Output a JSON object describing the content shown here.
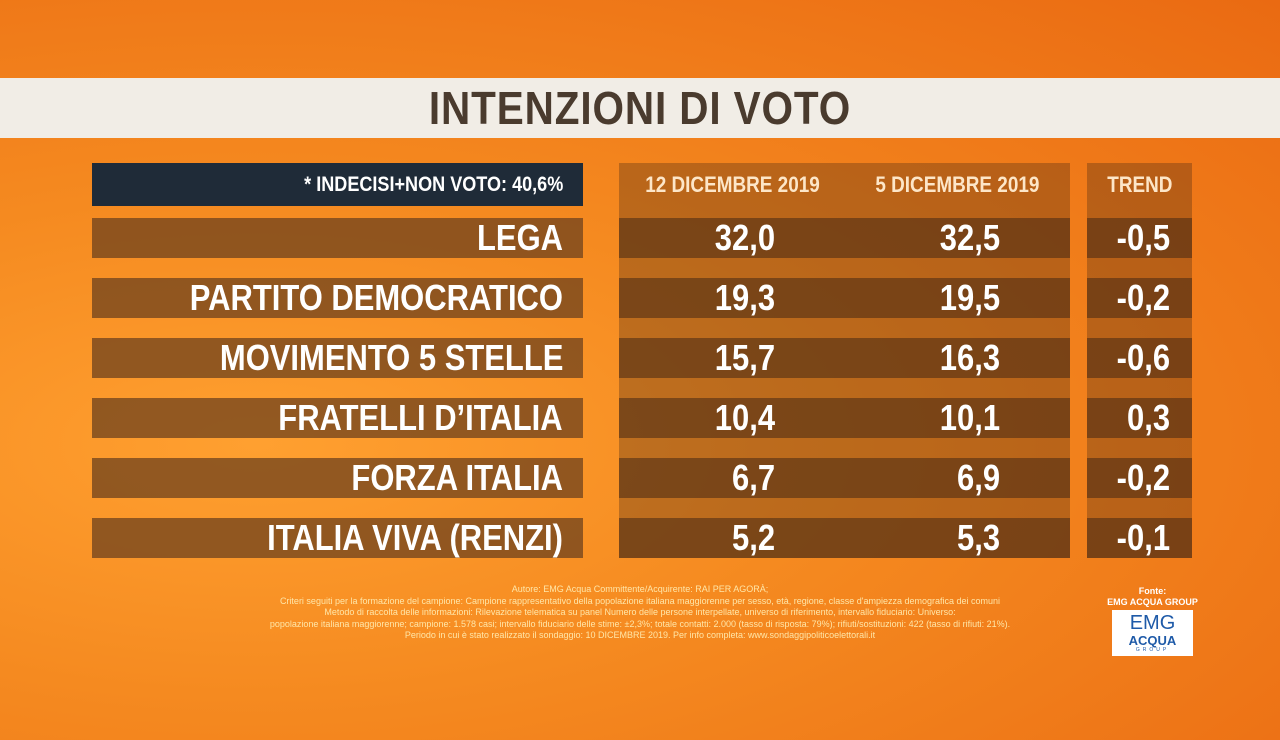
{
  "header": {
    "title": "INTENZIONI DI VOTO"
  },
  "table": {
    "note": "* INDECISI+NON VOTO: 40,6%",
    "columns": [
      "12 DICEMBRE 2019",
      "5 DICEMBRE 2019",
      "TREND"
    ],
    "rows": [
      [
        "LEGA",
        "32,0",
        "32,5",
        "-0,5"
      ],
      [
        "PARTITO DEMOCRATICO",
        "19,3",
        "19,5",
        "-0,2"
      ],
      [
        "MOVIMENTO 5 STELLE",
        "15,7",
        "16,3",
        "-0,6"
      ],
      [
        "FRATELLI D’ITALIA",
        "10,4",
        "10,1",
        "0,3"
      ],
      [
        "FORZA ITALIA",
        "6,7",
        "6,9",
        "-0,2"
      ],
      [
        "ITALIA VIVA (RENZI)",
        "5,2",
        "5,3",
        "-0,1"
      ]
    ]
  },
  "footer": {
    "lines": [
      "Autore: EMG Acqua Committente/Acquirente: RAI PER AGORÀ;",
      "Criteri seguiti per la formazione del campione: Campione rappresentativo della popolazione italiana maggiorenne per sesso, età, regione, classe d'ampiezza demografica dei comuni",
      "Metodo di raccolta delle informazioni: Rilevazione telematica su panel Numero delle persone interpellate, universo di riferimento, intervallo fiduciario: Universo:",
      "popolazione italiana maggiorenne; campione: 1.578 casi; intervallo fiduciario delle stime: ±2,3%; totale contatti: 2.000 (tasso di risposta: 79%); rifiuti/sostituzioni: 422 (tasso di rifiuti: 21%).",
      "Periodo in cui è stato realizzato il sondaggio: 10 DICEMBRE 2019. Per info completa: www.sondaggipoliticoelettorali.it"
    ],
    "source_label": "Fonte:",
    "source": "EMG ACQUA GROUP",
    "logo_top": "EMG",
    "logo_bottom": "ACQUA",
    "logo_sub": "GROUP"
  }
}
